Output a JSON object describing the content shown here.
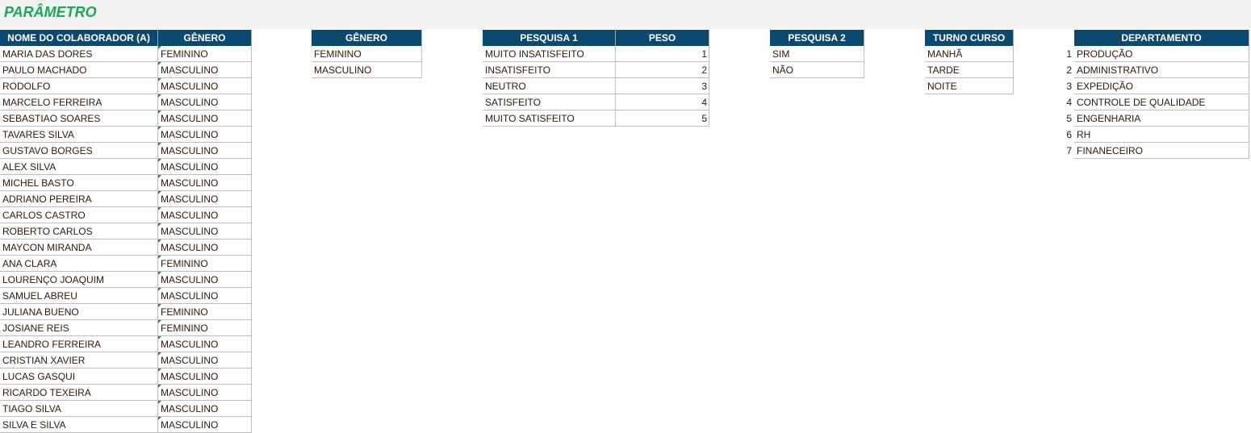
{
  "title": "PARÂMETRO",
  "employees": {
    "headers": [
      "NOME DO COLABORADOR (A)",
      "GÊNERO"
    ],
    "rows": [
      [
        "MARIA DAS DORES",
        "FEMININO"
      ],
      [
        "PAULO MACHADO",
        "MASCULINO"
      ],
      [
        "RODOLFO",
        "MASCULINO"
      ],
      [
        "MARCELO FERREIRA",
        "MASCULINO"
      ],
      [
        "SEBASTIAO SOARES",
        "MASCULINO"
      ],
      [
        "TAVARES SILVA",
        "MASCULINO"
      ],
      [
        "GUSTAVO BORGES",
        "MASCULINO"
      ],
      [
        "ALEX SILVA",
        "MASCULINO"
      ],
      [
        "MICHEL BASTO",
        "MASCULINO"
      ],
      [
        "ADRIANO PEREIRA",
        "MASCULINO"
      ],
      [
        "CARLOS CASTRO",
        "MASCULINO"
      ],
      [
        "ROBERTO CARLOS",
        "MASCULINO"
      ],
      [
        "MAYCON MIRANDA",
        "MASCULINO"
      ],
      [
        "ANA CLARA",
        "FEMININO"
      ],
      [
        "LOURENÇO JOAQUIM",
        "MASCULINO"
      ],
      [
        "SAMUEL ABREU",
        "MASCULINO"
      ],
      [
        "JULIANA BUENO",
        "FEMININO"
      ],
      [
        "JOSIANE REIS",
        "FEMININO"
      ],
      [
        "LEANDRO FERREIRA",
        "MASCULINO"
      ],
      [
        "CRISTIAN XAVIER",
        "MASCULINO"
      ],
      [
        "LUCAS GASQUI",
        "MASCULINO"
      ],
      [
        "RICARDO TEXEIRA",
        "MASCULINO"
      ],
      [
        "TIAGO SILVA",
        "MASCULINO"
      ],
      [
        "SILVA E SILVA",
        "MASCULINO"
      ]
    ]
  },
  "genero": {
    "header": "GÊNERO",
    "items": [
      "FEMININO",
      "MASCULINO"
    ]
  },
  "pesquisa1": {
    "headers": [
      "PESQUISA 1",
      "PESO"
    ],
    "rows": [
      [
        "MUITO INSATISFEITO",
        "1"
      ],
      [
        "INSATISFEITO",
        "2"
      ],
      [
        "NEUTRO",
        "3"
      ],
      [
        "SATISFEITO",
        "4"
      ],
      [
        "MUITO SATISFEITO",
        "5"
      ]
    ]
  },
  "pesquisa2": {
    "header": "PESQUISA 2",
    "items": [
      "SIM",
      "NÃO"
    ]
  },
  "turno": {
    "header": "TURNO CURSO",
    "items": [
      "MANHÃ",
      "TARDE",
      "NOITE"
    ]
  },
  "departamento": {
    "header": "DEPARTAMENTO",
    "rows": [
      [
        "1",
        "PRODUÇÃO"
      ],
      [
        "2",
        "ADMINISTRATIVO"
      ],
      [
        "3",
        "EXPEDIÇÃO"
      ],
      [
        "4",
        "CONTROLE DE QUALIDADE"
      ],
      [
        "5",
        "ENGENHARIA"
      ],
      [
        "6",
        "RH"
      ],
      [
        "7",
        "FINANECEIRO"
      ]
    ]
  }
}
